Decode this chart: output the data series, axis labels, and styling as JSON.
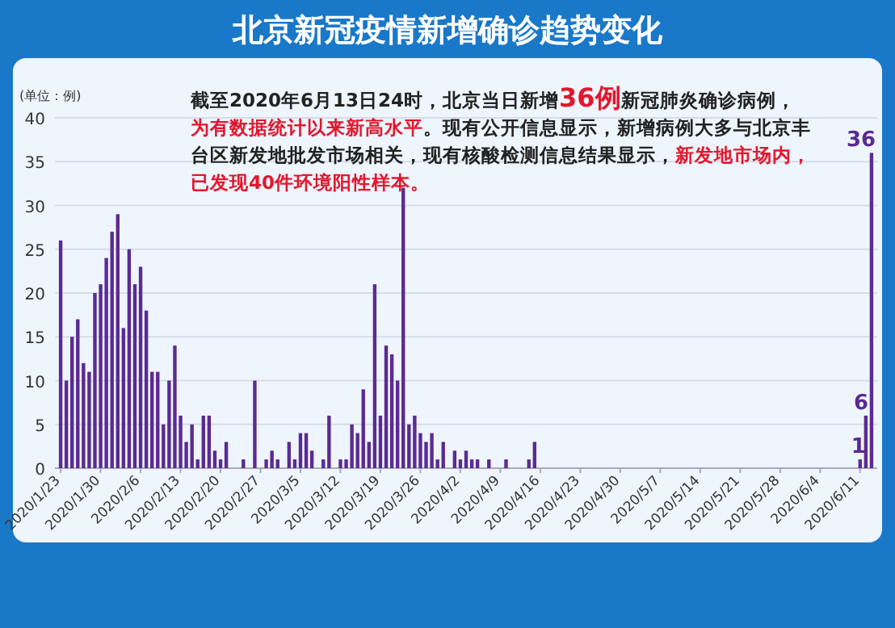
{
  "chart_data": {
    "type": "bar",
    "title": "北京新冠疫情新增确诊趋势变化",
    "ylabel": "(单位：例)",
    "annotations": [
      "截至2020年6月13日24时，北京当日新增",
      "36例",
      "新冠肺炎确诊病例，",
      "为有数据统计以来新高水平",
      "。现有公开信息显示，新增病例大多与北京丰台区新发地批发市场相关，现有核酸检测信息结果显示，",
      "新发地市场内，已发现40件环境阳性样本。"
    ],
    "x": [
      "2020-01-23",
      "2020-01-24",
      "2020-01-25",
      "2020-01-26",
      "2020-01-27",
      "2020-01-28",
      "2020-01-29",
      "2020-01-30",
      "2020-01-31",
      "2020-02-01",
      "2020-02-02",
      "2020-02-03",
      "2020-02-04",
      "2020-02-05",
      "2020-02-06",
      "2020-02-07",
      "2020-02-08",
      "2020-02-09",
      "2020-02-10",
      "2020-02-11",
      "2020-02-12",
      "2020-02-13",
      "2020-02-14",
      "2020-02-15",
      "2020-02-16",
      "2020-02-17",
      "2020-02-18",
      "2020-02-19",
      "2020-02-20",
      "2020-02-21",
      "2020-02-22",
      "2020-02-23",
      "2020-02-24",
      "2020-02-25",
      "2020-02-26",
      "2020-02-27",
      "2020-02-28",
      "2020-02-29",
      "2020-03-01",
      "2020-03-02",
      "2020-03-03",
      "2020-03-04",
      "2020-03-05",
      "2020-03-06",
      "2020-03-07",
      "2020-03-08",
      "2020-03-09",
      "2020-03-10",
      "2020-03-11",
      "2020-03-12",
      "2020-03-13",
      "2020-03-14",
      "2020-03-15",
      "2020-03-16",
      "2020-03-17",
      "2020-03-18",
      "2020-03-19",
      "2020-03-20",
      "2020-03-21",
      "2020-03-22",
      "2020-03-23",
      "2020-03-24",
      "2020-03-25",
      "2020-03-26",
      "2020-03-27",
      "2020-03-28",
      "2020-03-29",
      "2020-03-30",
      "2020-03-31",
      "2020-04-01",
      "2020-04-02",
      "2020-04-03",
      "2020-04-04",
      "2020-04-05",
      "2020-04-06",
      "2020-04-07",
      "2020-04-08",
      "2020-04-09",
      "2020-04-10",
      "2020-04-11",
      "2020-04-12",
      "2020-04-13",
      "2020-04-14",
      "2020-04-15",
      "2020-04-16",
      "2020-04-17",
      "2020-04-18",
      "2020-04-19",
      "2020-04-20",
      "2020-04-21",
      "2020-04-22",
      "2020-04-23",
      "2020-04-24",
      "2020-04-25",
      "2020-04-26",
      "2020-04-27",
      "2020-04-28",
      "2020-04-29",
      "2020-04-30",
      "2020-05-01",
      "2020-05-02",
      "2020-05-03",
      "2020-05-04",
      "2020-05-05",
      "2020-05-06",
      "2020-05-07",
      "2020-05-08",
      "2020-05-09",
      "2020-05-10",
      "2020-05-11",
      "2020-05-12",
      "2020-05-13",
      "2020-05-14",
      "2020-05-15",
      "2020-05-16",
      "2020-05-17",
      "2020-05-18",
      "2020-05-19",
      "2020-05-20",
      "2020-05-21",
      "2020-05-22",
      "2020-05-23",
      "2020-05-24",
      "2020-05-25",
      "2020-05-26",
      "2020-05-27",
      "2020-05-28",
      "2020-05-29",
      "2020-05-30",
      "2020-05-31",
      "2020-06-01",
      "2020-06-02",
      "2020-06-03",
      "2020-06-04",
      "2020-06-05",
      "2020-06-06",
      "2020-06-07",
      "2020-06-08",
      "2020-06-09",
      "2020-06-10",
      "2020-06-11",
      "2020-06-12",
      "2020-06-13"
    ],
    "color": "#5b2a92",
    "values": [
      26,
      10,
      15,
      17,
      12,
      11,
      20,
      21,
      24,
      27,
      29,
      16,
      25,
      21,
      23,
      18,
      11,
      11,
      5,
      10,
      14,
      6,
      3,
      5,
      1,
      6,
      6,
      2,
      1,
      3,
      0,
      0,
      1,
      0,
      10,
      0,
      1,
      2,
      1,
      0,
      3,
      1,
      4,
      4,
      2,
      0,
      1,
      6,
      0,
      1,
      1,
      5,
      4,
      9,
      3,
      21,
      6,
      14,
      13,
      10,
      32,
      5,
      6,
      4,
      3,
      4,
      1,
      3,
      0,
      2,
      1,
      2,
      1,
      1,
      0,
      1,
      0,
      0,
      1,
      0,
      0,
      0,
      1,
      3,
      0,
      0,
      0,
      0,
      0,
      0,
      0,
      0,
      0,
      0,
      0,
      0,
      0,
      0,
      0,
      0,
      0,
      0,
      0,
      0,
      0,
      0,
      0,
      0,
      0,
      0,
      0,
      0,
      0,
      0,
      0,
      0,
      0,
      0,
      0,
      0,
      0,
      0,
      0,
      0,
      0,
      0,
      0,
      0,
      0,
      0,
      0,
      0,
      0,
      0,
      0,
      0,
      0,
      0,
      0,
      0,
      1,
      6,
      36
    ],
    "value_labels": [
      null,
      null,
      null,
      null,
      null,
      null,
      null,
      null,
      null,
      null,
      null,
      null,
      null,
      null,
      null,
      null,
      null,
      null,
      null,
      null,
      null,
      null,
      null,
      null,
      null,
      null,
      null,
      null,
      null,
      null,
      null,
      null,
      null,
      null,
      null,
      null,
      null,
      null,
      null,
      null,
      null,
      null,
      null,
      null,
      null,
      null,
      null,
      null,
      null,
      null,
      null,
      null,
      null,
      null,
      null,
      null,
      null,
      null,
      null,
      null,
      null,
      null,
      null,
      null,
      null,
      null,
      null,
      null,
      null,
      null,
      null,
      null,
      null,
      null,
      null,
      null,
      null,
      null,
      null,
      null,
      null,
      null,
      null,
      null,
      null,
      null,
      null,
      null,
      null,
      null,
      null,
      null,
      null,
      null,
      null,
      null,
      null,
      null,
      null,
      null,
      null,
      null,
      null,
      null,
      null,
      null,
      null,
      null,
      null,
      null,
      null,
      null,
      null,
      null,
      null,
      null,
      null,
      null,
      null,
      null,
      null,
      null,
      null,
      null,
      null,
      null,
      null,
      null,
      null,
      null,
      null,
      null,
      null,
      null,
      null,
      null,
      null,
      null,
      null,
      null,
      "1",
      "6",
      "36"
    ],
    "xlim": [
      "2020-01-22",
      "2020-06-14"
    ],
    "xticks": [
      {
        "value": "2020-01-23",
        "label": "2020/1/23"
      },
      {
        "value": "2020-01-30",
        "label": "2020/1/30"
      },
      {
        "value": "2020-02-06",
        "label": "2020/2/6"
      },
      {
        "value": "2020-02-13",
        "label": "2020/2/13"
      },
      {
        "value": "2020-02-20",
        "label": "2020/2/20"
      },
      {
        "value": "2020-02-27",
        "label": "2020/2/27"
      },
      {
        "value": "2020-03-05",
        "label": "2020/3/5"
      },
      {
        "value": "2020-03-12",
        "label": "2020/3/12"
      },
      {
        "value": "2020-03-19",
        "label": "2020/3/19"
      },
      {
        "value": "2020-03-26",
        "label": "2020/3/26"
      },
      {
        "value": "2020-04-02",
        "label": "2020/4/2"
      },
      {
        "value": "2020-04-09",
        "label": "2020/4/9"
      },
      {
        "value": "2020-04-16",
        "label": "2020/4/16"
      },
      {
        "value": "2020-04-23",
        "label": "2020/4/23"
      },
      {
        "value": "2020-04-30",
        "label": "2020/4/30"
      },
      {
        "value": "2020-05-07",
        "label": "2020/5/7"
      },
      {
        "value": "2020-05-14",
        "label": "2020/5/14"
      },
      {
        "value": "2020-05-21",
        "label": "2020/5/21"
      },
      {
        "value": "2020-05-28",
        "label": "2020/5/28"
      },
      {
        "value": "2020-06-04",
        "label": "2020/6/4"
      },
      {
        "value": "2020-06-11",
        "label": "2020/6/11"
      }
    ],
    "ylim": [
      0,
      40
    ],
    "yticks": [
      0,
      5,
      10,
      15,
      20,
      25,
      30,
      35,
      40
    ],
    "grid": "y"
  }
}
